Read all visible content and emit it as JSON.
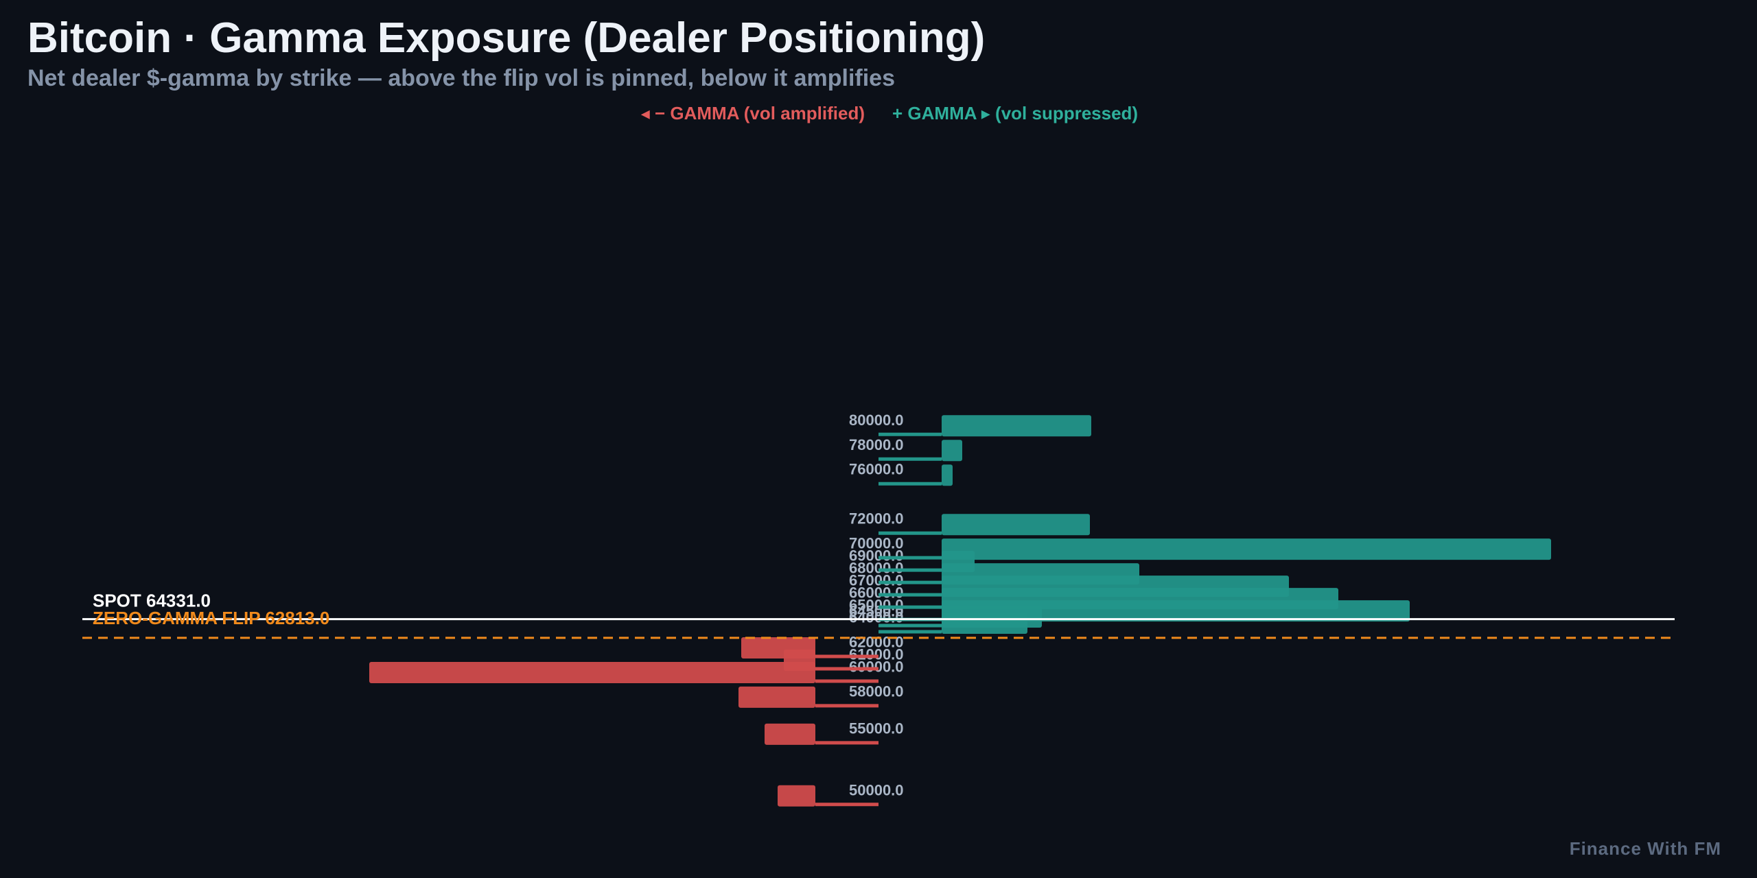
{
  "header": {
    "title": "Bitcoin · Gamma Exposure (Dealer Positioning)",
    "subtitle": "Net dealer $-gamma by strike — above the flip vol is pinned, below it amplifies"
  },
  "legend": {
    "negative_label": "◂ − GAMMA (vol amplified)",
    "positive_label": "+ GAMMA ▸ (vol suppressed)"
  },
  "footer": {
    "brand": "Finance With FM"
  },
  "colors": {
    "background": "#0c1018",
    "positive": "#23968a",
    "negative": "#d14c4c",
    "spot_line": "#ffffff",
    "flip_line": "#f08a1c",
    "flip_text": "#f08a1c",
    "tick_text": "#aab6c6"
  },
  "chart_data": {
    "type": "bar",
    "orientation": "horizontal",
    "title": "Bitcoin · Gamma Exposure (Dealer Positioning)",
    "subtitle": "Net dealer $-gamma by strike — above the flip vol is pinned, below it amplifies",
    "strikes": [
      50000,
      55000,
      58000,
      60000,
      61000,
      62000,
      64000,
      64500,
      65000,
      66000,
      67000,
      68000,
      69000,
      70000,
      72000,
      76000,
      78000,
      80000
    ],
    "strike_labels": [
      "50000.0",
      "55000.0",
      "58000.0",
      "60000.0",
      "61000.0",
      "62000.0",
      "64000.0",
      "64500.0",
      "65000.0",
      "66000.0",
      "67000.0",
      "68000.0",
      "69000.0",
      "70000.0",
      "72000.0",
      "76000.0",
      "78000.0",
      "80000.0"
    ],
    "values": [
      -55,
      -74,
      -112,
      -650,
      -46,
      -108,
      125,
      146,
      682,
      578,
      506,
      288,
      48,
      888,
      216,
      16,
      30,
      218
    ],
    "ylim": [
      49000,
      81500
    ],
    "grid": false,
    "spot": {
      "value": 64331.0,
      "label": "SPOT 64331.0"
    },
    "zero_gamma_flip": {
      "value": 62813.0,
      "label": "ZERO-GAMMA FLIP 62813.0"
    }
  }
}
